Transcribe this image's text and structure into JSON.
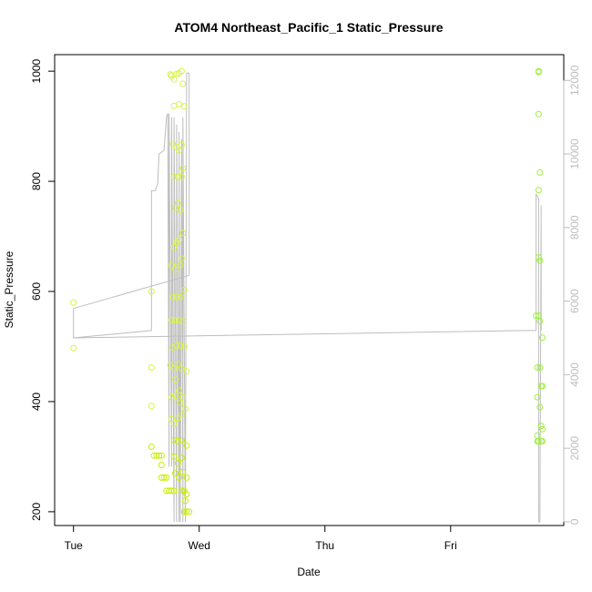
{
  "chart_data": {
    "type": "scatter",
    "title": "ATOM4 Northeast_Pacific_1 Static_Pressure",
    "xlabel": "Date",
    "ylabel": "Static_Pressure",
    "x_axis": {
      "unit": "days since Tue 00:00",
      "range": [
        -0.15,
        3.9
      ],
      "ticks": [
        {
          "value": 0,
          "label": "Tue"
        },
        {
          "value": 1,
          "label": "Wed"
        },
        {
          "value": 2,
          "label": "Thu"
        },
        {
          "value": 3,
          "label": "Fri"
        }
      ]
    },
    "y_axis_left": {
      "range": [
        175,
        1030
      ],
      "ticks": [
        200,
        400,
        600,
        800,
        1000
      ]
    },
    "y_axis_right": {
      "range": [
        -100,
        12700
      ],
      "ticks": [
        0,
        2000,
        4000,
        6000,
        8000,
        10000,
        12000
      ],
      "color": "#bdbdbd"
    },
    "grid": false,
    "colors": {
      "early_points": "#d4f542",
      "early_points_dark": "#c8f000",
      "late_points": "#9ef03c",
      "line": "#bdbdbd",
      "axis": "#000000"
    },
    "series": [
      {
        "type": "scatter",
        "points": [
          [
            0.0,
            580
          ],
          [
            0.0,
            497
          ],
          [
            0.62,
            600
          ],
          [
            0.62,
            462
          ],
          [
            0.62,
            392
          ],
          [
            0.62,
            318
          ],
          [
            0.64,
            302
          ],
          [
            0.66,
            302
          ],
          [
            0.68,
            302
          ],
          [
            0.7,
            302
          ],
          [
            0.7,
            285
          ],
          [
            0.7,
            262
          ],
          [
            0.72,
            262
          ],
          [
            0.74,
            262
          ],
          [
            0.74,
            238
          ],
          [
            0.76,
            238
          ],
          [
            0.78,
            238
          ],
          [
            0.8,
            238
          ],
          [
            0.77,
            994
          ],
          [
            0.78,
            992
          ],
          [
            0.8,
            985
          ],
          [
            0.82,
            995
          ],
          [
            0.84,
            996
          ],
          [
            0.86,
            1000
          ],
          [
            0.87,
            977
          ],
          [
            0.8,
            937
          ],
          [
            0.84,
            940
          ],
          [
            0.88,
            936
          ],
          [
            0.79,
            868
          ],
          [
            0.82,
            862
          ],
          [
            0.84,
            856
          ],
          [
            0.86,
            866
          ],
          [
            0.8,
            808
          ],
          [
            0.83,
            808
          ],
          [
            0.86,
            808
          ],
          [
            0.87,
            824
          ],
          [
            0.81,
            752
          ],
          [
            0.83,
            760
          ],
          [
            0.85,
            748
          ],
          [
            0.87,
            706
          ],
          [
            0.8,
            680
          ],
          [
            0.82,
            690
          ],
          [
            0.84,
            694
          ],
          [
            0.86,
            660
          ],
          [
            0.78,
            648
          ],
          [
            0.81,
            640
          ],
          [
            0.85,
            648
          ],
          [
            0.88,
            603
          ],
          [
            0.79,
            590
          ],
          [
            0.82,
            590
          ],
          [
            0.85,
            590
          ],
          [
            0.78,
            548
          ],
          [
            0.81,
            548
          ],
          [
            0.84,
            548
          ],
          [
            0.87,
            546
          ],
          [
            0.79,
            498
          ],
          [
            0.82,
            502
          ],
          [
            0.85,
            502
          ],
          [
            0.88,
            500
          ],
          [
            0.77,
            466
          ],
          [
            0.8,
            460
          ],
          [
            0.83,
            468
          ],
          [
            0.86,
            460
          ],
          [
            0.81,
            440
          ],
          [
            0.84,
            420
          ],
          [
            0.87,
            408
          ],
          [
            0.9,
            455
          ],
          [
            0.78,
            408
          ],
          [
            0.81,
            410
          ],
          [
            0.85,
            398
          ],
          [
            0.89,
            387
          ],
          [
            0.78,
            368
          ],
          [
            0.8,
            360
          ],
          [
            0.83,
            370
          ],
          [
            0.86,
            376
          ],
          [
            0.8,
            330
          ],
          [
            0.83,
            328
          ],
          [
            0.86,
            330
          ],
          [
            0.9,
            320
          ],
          [
            0.8,
            300
          ],
          [
            0.83,
            288
          ],
          [
            0.86,
            298
          ],
          [
            0.81,
            270
          ],
          [
            0.84,
            262
          ],
          [
            0.87,
            272
          ],
          [
            0.9,
            262
          ],
          [
            0.86,
            238
          ],
          [
            0.88,
            238
          ],
          [
            0.89,
            220
          ],
          [
            0.9,
            232
          ],
          [
            0.88,
            200
          ],
          [
            0.9,
            200
          ],
          [
            0.92,
            200
          ]
        ]
      },
      {
        "type": "scatter",
        "points": [
          [
            3.7,
            1000
          ],
          [
            3.7,
            998
          ],
          [
            3.7,
            922
          ],
          [
            3.71,
            816
          ],
          [
            3.7,
            784
          ],
          [
            3.7,
            662
          ],
          [
            3.71,
            656
          ],
          [
            3.68,
            556
          ],
          [
            3.7,
            556
          ],
          [
            3.71,
            546
          ],
          [
            3.73,
            516
          ],
          [
            3.69,
            462
          ],
          [
            3.71,
            462
          ],
          [
            3.72,
            428
          ],
          [
            3.73,
            428
          ],
          [
            3.69,
            408
          ],
          [
            3.71,
            390
          ],
          [
            3.72,
            356
          ],
          [
            3.73,
            350
          ],
          [
            3.69,
            338
          ],
          [
            3.69,
            328
          ],
          [
            3.7,
            328
          ],
          [
            3.72,
            328
          ],
          [
            3.73,
            328
          ]
        ]
      },
      {
        "type": "line",
        "axis": "right",
        "points": [
          [
            0.0,
            5800
          ],
          [
            0.0,
            5000
          ],
          [
            0.62,
            5200
          ],
          [
            0.62,
            6200
          ],
          [
            0.62,
            9000
          ],
          [
            0.65,
            9000
          ],
          [
            0.67,
            9200
          ],
          [
            0.68,
            10000
          ],
          [
            0.72,
            10100
          ],
          [
            0.74,
            11000
          ],
          [
            0.75,
            11100
          ],
          [
            0.76,
            1500
          ],
          [
            0.76,
            11100
          ],
          [
            0.78,
            1500
          ],
          [
            0.78,
            11000
          ],
          [
            0.8,
            0
          ],
          [
            0.8,
            11000
          ],
          [
            0.82,
            0
          ],
          [
            0.82,
            10800
          ],
          [
            0.84,
            0
          ],
          [
            0.84,
            10600
          ],
          [
            0.85,
            0
          ],
          [
            0.86,
            10400
          ],
          [
            0.87,
            0
          ],
          [
            0.87,
            11000
          ],
          [
            0.89,
            0
          ],
          [
            0.9,
            12200
          ],
          [
            0.92,
            12200
          ],
          [
            0.92,
            6700
          ],
          [
            0.0,
            5800
          ],
          [
            0.0,
            5000
          ],
          [
            3.6,
            5200
          ],
          [
            3.68,
            5200
          ],
          [
            3.68,
            8900
          ],
          [
            3.7,
            8800
          ],
          [
            3.7,
            0
          ],
          [
            3.71,
            0
          ],
          [
            3.72,
            8600
          ],
          [
            3.72,
            5200
          ]
        ]
      }
    ]
  }
}
